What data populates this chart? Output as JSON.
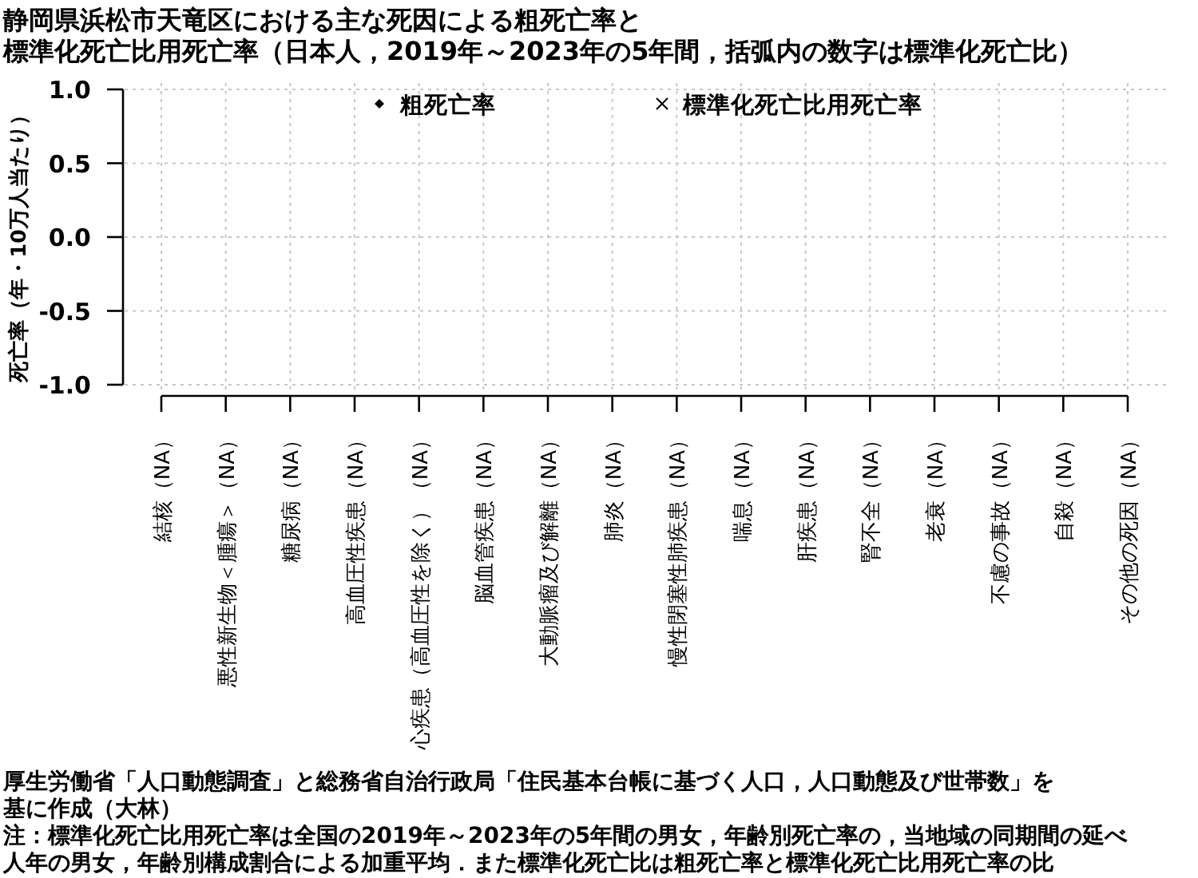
{
  "chart_data": {
    "type": "scatter",
    "title": "静岡県浜松市天竜区における主な死因による粗死亡率と標準化死亡比用死亡率（日本人，2019年～2023年の5年間，括弧内の数字は標準化死亡比）",
    "ylabel": "死亡率（年・10万人当たり）",
    "categories": [
      "結核（NA）",
      "悪性新生物＜腫瘍＞（NA）",
      "糖尿病（NA）",
      "高血圧性疾患（NA）",
      "心疾患（高血圧性を除く）（NA）",
      "脳血管疾患（NA）",
      "大動脈瘤及び解離（NA）",
      "肺炎（NA）",
      "慢性閉塞性肺疾患（NA）",
      "喘息（NA）",
      "肝疾患（NA）",
      "腎不全（NA）",
      "老衰（NA）",
      "不慮の事故（NA）",
      "自殺（NA）",
      "その他の死因（NA）"
    ],
    "series": [
      {
        "name": "粗死亡率",
        "color": "#000000",
        "marker": "diamond",
        "values": [
          null,
          null,
          null,
          null,
          null,
          null,
          null,
          null,
          null,
          null,
          null,
          null,
          null,
          null,
          null,
          null
        ]
      },
      {
        "name": "標準化死亡比用死亡率",
        "color": "#000000",
        "marker": "cross",
        "values": [
          null,
          null,
          null,
          null,
          null,
          null,
          null,
          null,
          null,
          null,
          null,
          null,
          null,
          null,
          null,
          null
        ]
      }
    ],
    "ylim": [
      -1,
      1
    ],
    "yticks": [
      {
        "value": -1,
        "label": "-1.0"
      },
      {
        "value": -0.5,
        "label": "-0.5"
      },
      {
        "value": 0,
        "label": "0.0"
      },
      {
        "value": 0.5,
        "label": "0.5"
      },
      {
        "value": 1,
        "label": "1.0"
      }
    ],
    "grid": true,
    "legend": "top",
    "annotations": [
      "厚生労働省「人口動態調査」と総務省自治行政局「住民基本台帳に基づく人口，人口動態及び世帯数」を基に作成（大林）",
      "注：標準化死亡比用死亡率は全国の2019年～2023年の5年間の男女，年齢別死亡率の，当地域の同期間の延べ人年の男女，年齢別構成割合による加重平均．また標準化死亡比は粗死亡率と標準化死亡比用死亡率の比"
    ]
  }
}
